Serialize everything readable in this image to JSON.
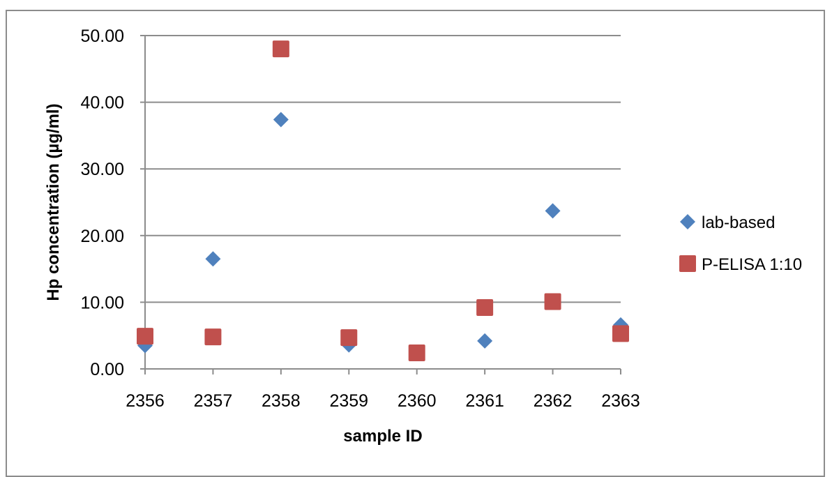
{
  "chart_data": {
    "type": "scatter",
    "xlabel": "sample ID",
    "ylabel": "Hp concentration (µg/ml)",
    "categories": [
      "2356",
      "2357",
      "2358",
      "2359",
      "2360",
      "2361",
      "2362",
      "2363"
    ],
    "ylim": [
      0,
      50
    ],
    "yticks": [
      "0.00",
      "10.00",
      "20.00",
      "30.00",
      "40.00",
      "50.00"
    ],
    "grid": true,
    "legend_position": "right",
    "series": [
      {
        "name": "lab-based",
        "marker": "diamond",
        "color": "#4f81bd",
        "x": [
          "2356",
          "2357",
          "2358",
          "2359",
          "2360",
          "2361",
          "2362",
          "2363"
        ],
        "values": [
          3.5,
          16.5,
          37.4,
          3.6,
          null,
          4.2,
          23.7,
          6.6
        ]
      },
      {
        "name": "P-ELISA 1:10",
        "marker": "square",
        "color": "#c0504d",
        "x": [
          "2356",
          "2357",
          "2358",
          "2359",
          "2360",
          "2361",
          "2362",
          "2363"
        ],
        "values": [
          4.9,
          4.8,
          48.0,
          4.7,
          2.4,
          9.2,
          10.1,
          5.3
        ]
      }
    ]
  }
}
